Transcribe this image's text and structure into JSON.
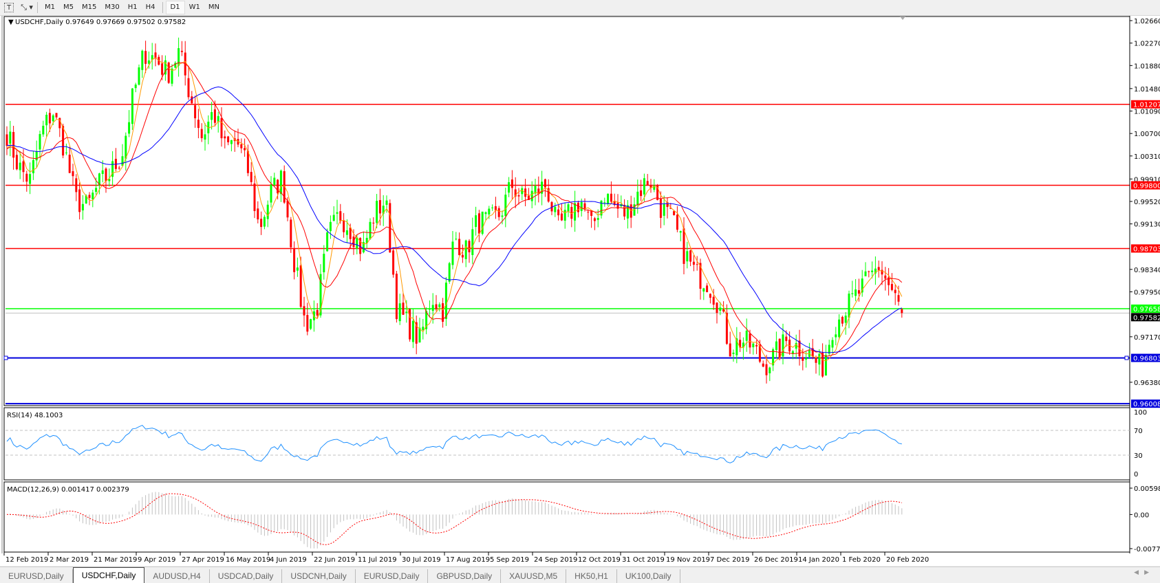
{
  "toolbar": {
    "icons": [
      "text-tool-icon",
      "drawing-tools-icon"
    ],
    "timeframes": [
      {
        "label": "M1",
        "active": false
      },
      {
        "label": "M5",
        "active": false
      },
      {
        "label": "M15",
        "active": false
      },
      {
        "label": "M30",
        "active": false
      },
      {
        "label": "H1",
        "active": false
      },
      {
        "label": "H4",
        "active": false
      },
      {
        "label": "D1",
        "active": true
      },
      {
        "label": "W1",
        "active": false
      },
      {
        "label": "MN",
        "active": false
      }
    ]
  },
  "chart": {
    "header": "USDCHF,Daily  0.97649 0.97669 0.97502 0.97582",
    "symbol": "USDCHF",
    "timeframe": "Daily",
    "ohlc": {
      "open": 0.97649,
      "high": 0.97669,
      "low": 0.97502,
      "close": 0.97582
    },
    "colors": {
      "bull": "#00ff00",
      "bear": "#ff0000",
      "ma_fast": "#ff9900",
      "ma_mid": "#ff0000",
      "ma_slow": "#0000ff",
      "rsi": "#1e90ff",
      "macd_hist": "#c0c0c0",
      "macd_signal": "#ff0000"
    },
    "price_axis": [
      "1.02660",
      "1.02270",
      "1.01880",
      "1.01480",
      "1.01090",
      "1.00700",
      "1.00310",
      "0.99910",
      "0.99520",
      "0.99130",
      "0.98340",
      "0.97950",
      "0.97170",
      "0.96380"
    ],
    "price_range": [
      0.96008,
      1.027
    ],
    "hlines": [
      {
        "price": 1.01207,
        "label": "1.01207",
        "color": "#ff0000"
      },
      {
        "price": 0.998,
        "label": "0.99800",
        "color": "#ff0000"
      },
      {
        "price": 0.98703,
        "label": "0.98703",
        "color": "#ff0000"
      },
      {
        "price": 0.97658,
        "label": "0.97658",
        "color": "#00ff00"
      },
      {
        "price": 0.96803,
        "label": "0.96803",
        "color": "#0000dd"
      },
      {
        "price": 0.96008,
        "label": "0.96008",
        "color": "#0000dd"
      }
    ],
    "bid_line": {
      "price": 0.97582,
      "label": "0.97582"
    },
    "date_axis": [
      "12 Feb 2019",
      "2 Mar 2019",
      "21 Mar 2019",
      "9 Apr 2019",
      "27 Apr 2019",
      "16 May 2019",
      "4 Jun 2019",
      "22 Jun 2019",
      "11 Jul 2019",
      "30 Jul 2019",
      "17 Aug 2019",
      "5 Sep 2019",
      "24 Sep 2019",
      "12 Oct 2019",
      "31 Oct 2019",
      "19 Nov 2019",
      "7 Dec 2019",
      "26 Dec 2019",
      "14 Jan 2020",
      "1 Feb 2020",
      "20 Feb 2020"
    ]
  },
  "rsi": {
    "label": "RSI(14) 48.1003",
    "value": 48.1003,
    "axis": [
      "100",
      "70",
      "30",
      "0"
    ],
    "levels": [
      70,
      30
    ]
  },
  "macd": {
    "label": "MACD(12,26,9) 0.001417 0.002379",
    "main": 0.001417,
    "signal": 0.002379,
    "axis": [
      "0.005986",
      "0.00",
      "-0.007737"
    ],
    "range": [
      -0.007737,
      0.005986
    ]
  },
  "chart_data": {
    "type": "candlestick",
    "title": "USDCHF,Daily",
    "x_start": "12 Feb 2019",
    "x_end": "20 Feb 2020",
    "closes_sampled": [
      1.0071,
      1.0013,
      0.9987,
      1.0071,
      1.0109,
      1.0045,
      0.9955,
      0.9942,
      0.9981,
      1.0,
      1.0032,
      1.0135,
      1.0212,
      1.0199,
      1.0174,
      1.0212,
      1.0135,
      1.0064,
      1.0109,
      1.0045,
      1.0058,
      1.0007,
      0.9904,
      0.9968,
      0.9994,
      0.9853,
      0.9737,
      0.9763,
      0.9891,
      0.993,
      0.9904,
      0.9865,
      0.993,
      0.9955,
      0.9763,
      0.9737,
      0.9711,
      0.9788,
      0.9763,
      0.9891,
      0.9865,
      0.9917,
      0.9917,
      0.993,
      0.9981,
      0.9955,
      0.9968,
      0.9981,
      0.9904,
      0.993,
      0.9955,
      0.9904,
      0.9968,
      0.9942,
      0.993,
      0.9968,
      0.9994,
      0.9942,
      0.9917,
      0.9865,
      0.9827,
      0.9814,
      0.9776,
      0.9699,
      0.9711,
      0.9699,
      0.9666,
      0.9686,
      0.9711,
      0.9699,
      0.9686,
      0.966,
      0.9737,
      0.9763,
      0.9788,
      0.9814,
      0.984,
      0.9801,
      0.97582
    ],
    "ylim": [
      0.96008,
      1.027
    ]
  },
  "tabs": [
    {
      "label": "EURUSD,Daily",
      "active": false
    },
    {
      "label": "USDCHF,Daily",
      "active": true
    },
    {
      "label": "AUDUSD,H4",
      "active": false
    },
    {
      "label": "USDCAD,Daily",
      "active": false
    },
    {
      "label": "USDCNH,Daily",
      "active": false
    },
    {
      "label": "EURUSD,Daily",
      "active": false
    },
    {
      "label": "GBPUSD,Daily",
      "active": false
    },
    {
      "label": "XAUUSD,M5",
      "active": false
    },
    {
      "label": "HK50,H1",
      "active": false
    },
    {
      "label": "UK100,Daily",
      "active": false
    }
  ],
  "scroll": {
    "left": "◀",
    "right": "▶"
  }
}
